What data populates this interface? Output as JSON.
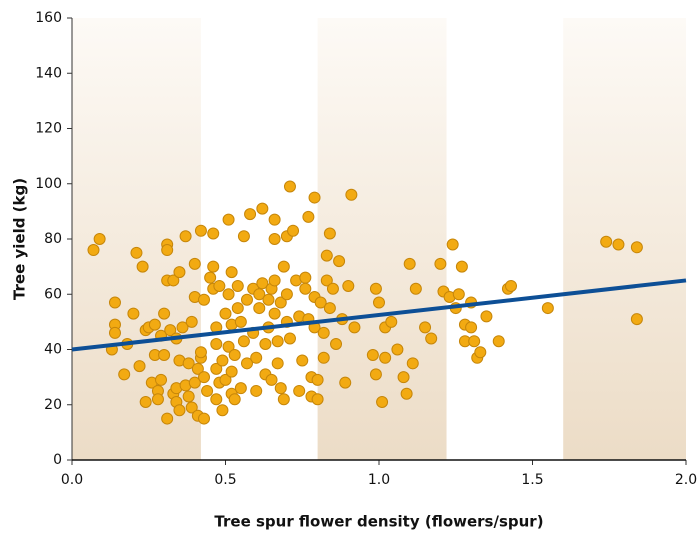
{
  "chart_data": {
    "type": "scatter",
    "ylabel": "Tree yield (kg)",
    "xlabel": "Tree spur flower density (flowers/spur)",
    "xlim": [
      0,
      2.0
    ],
    "ylim": [
      0,
      160
    ],
    "xticks": [
      {
        "value": 0,
        "label": "0.0"
      },
      0.5,
      {
        "value": 1,
        "label": "1.0"
      },
      1.5,
      {
        "value": 2,
        "label": "2.0"
      }
    ],
    "yticks": [
      0,
      20,
      40,
      60,
      80,
      100,
      120,
      140,
      160
    ],
    "series": [
      {
        "color": "#f2aa12",
        "x": [
          0.07,
          0.09,
          0.14,
          0.14,
          0.14,
          0.13,
          0.17,
          0.18,
          0.2,
          0.21,
          0.22,
          0.23,
          0.24,
          0.24,
          0.25,
          0.26,
          0.27,
          0.27,
          0.28,
          0.28,
          0.29,
          0.29,
          0.3,
          0.3,
          0.31,
          0.31,
          0.31,
          0.31,
          0.32,
          0.33,
          0.33,
          0.34,
          0.34,
          0.34,
          0.35,
          0.35,
          0.35,
          0.36,
          0.37,
          0.37,
          0.38,
          0.38,
          0.39,
          0.39,
          0.4,
          0.4,
          0.4,
          0.41,
          0.41,
          0.42,
          0.42,
          0.42,
          0.43,
          0.43,
          0.43,
          0.44,
          0.45,
          0.46,
          0.46,
          0.46,
          0.47,
          0.47,
          0.47,
          0.47,
          0.48,
          0.48,
          0.49,
          0.49,
          0.5,
          0.5,
          0.51,
          0.51,
          0.51,
          0.52,
          0.52,
          0.52,
          0.52,
          0.53,
          0.53,
          0.54,
          0.54,
          0.55,
          0.55,
          0.56,
          0.56,
          0.57,
          0.57,
          0.58,
          0.59,
          0.59,
          0.6,
          0.6,
          0.61,
          0.61,
          0.62,
          0.62,
          0.63,
          0.63,
          0.64,
          0.64,
          0.65,
          0.65,
          0.66,
          0.66,
          0.66,
          0.66,
          0.67,
          0.67,
          0.68,
          0.68,
          0.69,
          0.69,
          0.7,
          0.7,
          0.7,
          0.71,
          0.71,
          0.72,
          0.73,
          0.74,
          0.74,
          0.75,
          0.76,
          0.76,
          0.77,
          0.77,
          0.78,
          0.78,
          0.79,
          0.79,
          0.79,
          0.8,
          0.8,
          0.81,
          0.82,
          0.82,
          0.83,
          0.83,
          0.84,
          0.84,
          0.85,
          0.86,
          0.87,
          0.88,
          0.89,
          0.9,
          0.91,
          0.92,
          0.98,
          0.99,
          0.99,
          1.0,
          1.01,
          1.02,
          1.02,
          1.04,
          1.06,
          1.08,
          1.09,
          1.1,
          1.11,
          1.12,
          1.15,
          1.17,
          1.2,
          1.21,
          1.23,
          1.24,
          1.25,
          1.26,
          1.27,
          1.28,
          1.28,
          1.3,
          1.3,
          1.31,
          1.32,
          1.33,
          1.35,
          1.39,
          1.42,
          1.43,
          1.55,
          1.74,
          1.78,
          1.84,
          1.84
        ],
        "values": [
          76,
          80,
          57,
          49,
          46,
          40,
          31,
          42,
          53,
          75,
          34,
          70,
          21,
          47,
          48,
          28,
          49,
          38,
          25,
          22,
          45,
          29,
          38,
          53,
          78,
          76,
          65,
          15,
          47,
          24,
          65,
          21,
          44,
          26,
          68,
          36,
          18,
          48,
          81,
          27,
          35,
          23,
          50,
          19,
          28,
          59,
          71,
          33,
          16,
          37,
          39,
          83,
          15,
          30,
          58,
          25,
          66,
          70,
          82,
          62,
          42,
          48,
          33,
          22,
          63,
          28,
          36,
          18,
          53,
          29,
          60,
          87,
          41,
          68,
          49,
          32,
          24,
          22,
          38,
          55,
          63,
          50,
          26,
          81,
          43,
          58,
          35,
          89,
          62,
          46,
          25,
          37,
          60,
          55,
          91,
          64,
          42,
          31,
          58,
          48,
          62,
          29,
          87,
          80,
          65,
          53,
          43,
          35,
          26,
          57,
          22,
          70,
          81,
          60,
          50,
          99,
          44,
          83,
          65,
          52,
          25,
          36,
          66,
          62,
          88,
          51,
          30,
          23,
          95,
          59,
          48,
          22,
          29,
          57,
          37,
          46,
          65,
          74,
          82,
          55,
          62,
          42,
          72,
          51,
          28,
          63,
          96,
          48,
          38,
          62,
          31,
          57,
          21,
          48,
          37,
          50,
          40,
          30,
          24,
          71,
          35,
          62,
          48,
          44,
          71,
          61,
          59,
          78,
          55,
          60,
          70,
          43,
          49,
          48,
          57,
          43,
          37,
          39,
          52,
          43,
          62,
          63,
          55,
          79,
          78,
          77,
          51
        ]
      }
    ],
    "trend_line": {
      "color": "#0d4f96",
      "x": [
        0,
        2.0
      ],
      "values": [
        40,
        65
      ]
    }
  }
}
